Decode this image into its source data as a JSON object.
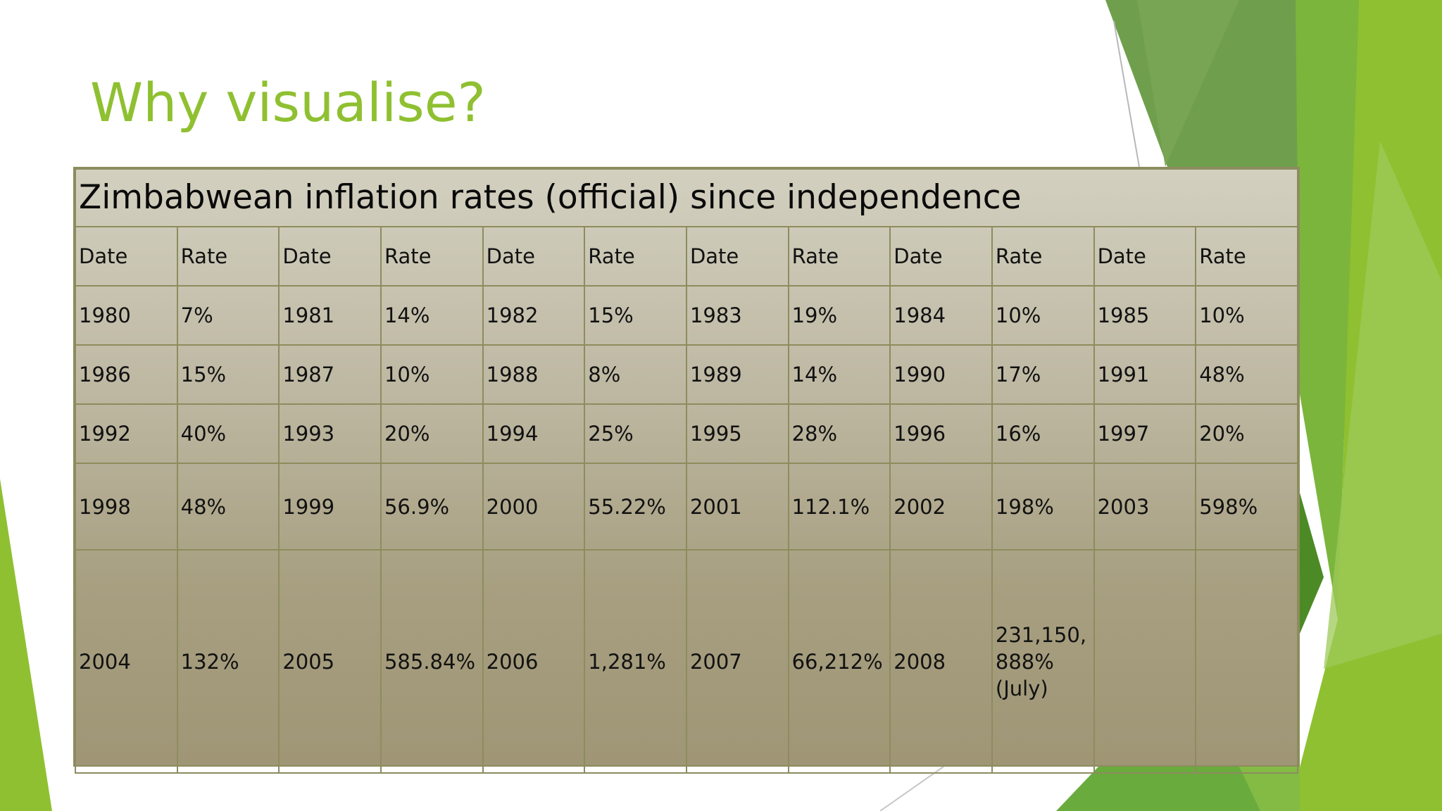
{
  "slide": {
    "title": "Why visualise?"
  },
  "colors": {
    "title": "#8fc031",
    "table_border": "#8d8c5e",
    "table_top": "#d3d0c0",
    "table_bottom": "#9f9676",
    "deco_light_green": "#8fc031",
    "deco_dark_green": "#5f9a3a"
  },
  "table": {
    "caption": "Zimbabwean inflation rates (official) since independence",
    "header": [
      "Date",
      "Rate",
      "Date",
      "Rate",
      "Date",
      "Rate",
      "Date",
      "Rate",
      "Date",
      "Rate",
      "Date",
      "Rate"
    ],
    "rows": [
      [
        "1980",
        "7%",
        "1981",
        "14%",
        "1982",
        "15%",
        "1983",
        "19%",
        "1984",
        "10%",
        "1985",
        "10%"
      ],
      [
        "1986",
        "15%",
        "1987",
        "10%",
        "1988",
        "8%",
        "1989",
        "14%",
        "1990",
        "17%",
        "1991",
        "48%"
      ],
      [
        "1992",
        "40%",
        "1993",
        "20%",
        "1994",
        "25%",
        "1995",
        "28%",
        "1996",
        "16%",
        "1997",
        "20%"
      ],
      [
        "1998",
        "48%",
        "1999",
        "56.9%",
        "2000",
        "55.22%",
        "2001",
        "112.1%",
        "2002",
        "198%",
        "2003",
        "598%"
      ],
      [
        "2004",
        "132%",
        "2005",
        "585.84%",
        "2006",
        "1,281%",
        "2007",
        "66,212%",
        "2008",
        "231,150,\n888%\n(July)",
        "",
        ""
      ]
    ]
  }
}
